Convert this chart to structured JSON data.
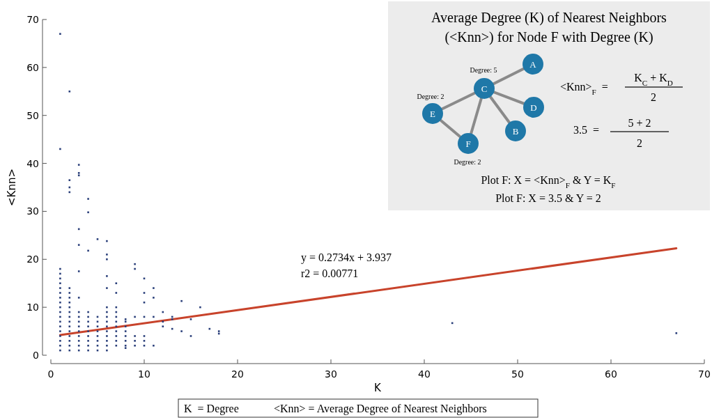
{
  "chart_data": {
    "type": "scatter",
    "xlabel": "K",
    "ylabel": "<Knn>",
    "xlim": [
      0,
      70
    ],
    "xticks": [
      0,
      10,
      20,
      30,
      40,
      50,
      60,
      70
    ],
    "ylim": [
      0,
      70
    ],
    "yticks": [
      0,
      10,
      20,
      30,
      40,
      50,
      60,
      70
    ],
    "grid": false,
    "series": [
      {
        "color": "#2a3f7a",
        "marker": "square",
        "x": [
          1,
          1,
          1,
          1,
          1,
          1,
          1,
          1,
          1,
          1,
          1,
          1,
          1,
          1,
          1,
          1,
          1,
          1,
          1,
          1,
          2,
          2,
          2,
          2,
          2,
          2,
          2,
          2,
          2,
          2,
          2,
          2,
          2,
          2,
          2,
          2,
          2,
          2,
          3,
          3,
          3,
          3,
          3,
          3,
          3,
          3,
          3,
          3,
          3,
          3,
          3,
          3,
          3,
          3,
          4,
          4,
          4,
          4,
          4,
          4,
          4,
          4,
          4,
          4,
          4,
          4,
          5,
          5,
          5,
          5,
          5,
          5,
          5,
          5,
          5,
          6,
          6,
          6,
          6,
          6,
          6,
          6,
          6,
          6,
          6,
          6,
          6,
          6,
          6,
          6,
          7,
          7,
          7,
          7,
          7,
          7,
          7,
          7,
          7,
          7,
          7,
          8,
          8,
          8,
          8,
          8,
          8,
          8,
          8,
          9,
          9,
          9,
          9,
          9,
          9,
          10,
          10,
          10,
          10,
          10,
          10,
          10,
          11,
          11,
          11,
          11,
          12,
          12,
          12,
          13,
          13,
          13,
          14,
          14,
          15,
          15,
          16,
          17,
          18,
          18,
          43,
          67
        ],
        "values": [
          1,
          2,
          3,
          4,
          5,
          6,
          7,
          8,
          9,
          10,
          11,
          12,
          13,
          14,
          15,
          16,
          17,
          18,
          43,
          67,
          1,
          2,
          3,
          4,
          5,
          6,
          7,
          8,
          9,
          10,
          11,
          12,
          13,
          14,
          34,
          35,
          36.5,
          55,
          1,
          2,
          3,
          4,
          5,
          6,
          7,
          8,
          9,
          12,
          17.5,
          23,
          26.3,
          37.5,
          38,
          39.7,
          1,
          2,
          3,
          4,
          5,
          6,
          7,
          8,
          9,
          21.8,
          29.8,
          32.6,
          1,
          2,
          3,
          4,
          5,
          6,
          7,
          8,
          24.2,
          1,
          2,
          3,
          4,
          5,
          6,
          7,
          8,
          9,
          10,
          14,
          16.5,
          20,
          21,
          23.8,
          2,
          3,
          4,
          5,
          6,
          7,
          8,
          9,
          10,
          13,
          15,
          1.5,
          2,
          3,
          4,
          5,
          6,
          7,
          7.5,
          2,
          3,
          4,
          8,
          18,
          19,
          2,
          3,
          4,
          8,
          11,
          13,
          16,
          2,
          8,
          12,
          14,
          6,
          7,
          9,
          5.5,
          7.5,
          8,
          5,
          11.3,
          4,
          7.5,
          10,
          5.5,
          4.5,
          5,
          6.7,
          4.6
        ]
      },
      {
        "type": "line",
        "color": "#c8432b",
        "x": [
          1,
          67
        ],
        "values": [
          4.2,
          22.3
        ]
      }
    ],
    "annotations": [
      "y = 0.2734x + 3.937",
      "r2 = 0.00771",
      "K  = Degree",
      "<Knn> = Average Degree of Nearest Neighbors",
      "Average Degree (K) of Nearest Neighbors (<Knn>) for Node F with Degree (K)",
      "Degree: 5",
      "Degree: 2",
      "Degree: 2",
      "A",
      "B",
      "C",
      "D",
      "E",
      "F",
      "<Knn>$_{F}$  =",
      "K$_{C}$ + K$_{D}$",
      "2",
      "3.5  =",
      "5 + 2",
      "2",
      "Plot F: X = <Knn>$_{F}$ & Y = K$_{F}$",
      "Plot F: X = 3.5 & Y = 2"
    ]
  }
}
